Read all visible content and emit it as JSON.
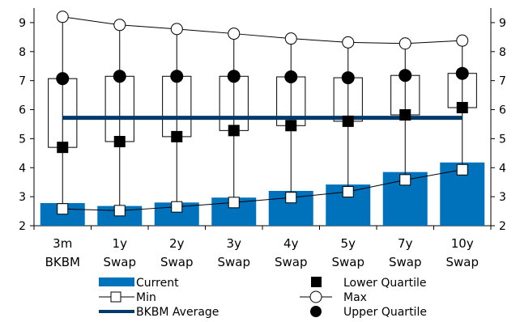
{
  "chart_data": {
    "type": "bar",
    "title": "",
    "xlabel": "",
    "ylabel": "",
    "ylim": [
      2,
      9.5
    ],
    "yticks": [
      2,
      3,
      4,
      5,
      6,
      7,
      8,
      9
    ],
    "secondary_axis": true,
    "grid": false,
    "legend_position": "bottom",
    "categories": [
      [
        "3m",
        "BKBM"
      ],
      [
        "1y",
        "Swap"
      ],
      [
        "2y",
        "Swap"
      ],
      [
        "3y",
        "Swap"
      ],
      [
        "4y",
        "Swap"
      ],
      [
        "5y",
        "Swap"
      ],
      [
        "7y",
        "Swap"
      ],
      [
        "10y",
        "Swap"
      ]
    ],
    "series": [
      {
        "name": "Current",
        "kind": "bar",
        "color": "#0072bc",
        "values": [
          2.78,
          2.68,
          2.8,
          2.97,
          3.2,
          3.42,
          3.85,
          4.18
        ]
      },
      {
        "name": "Min",
        "kind": "line-square-open",
        "values": [
          2.58,
          2.52,
          2.65,
          2.8,
          2.97,
          3.17,
          3.58,
          3.93
        ]
      },
      {
        "name": "BKBM Average",
        "kind": "hline",
        "color": "#003a6c",
        "values": [
          5.72,
          5.72,
          5.72,
          5.72,
          5.72,
          5.72,
          5.72,
          5.72
        ]
      },
      {
        "name": "Lower Quartile",
        "kind": "marker-square-filled",
        "values": [
          4.7,
          4.9,
          5.07,
          5.28,
          5.45,
          5.6,
          5.82,
          6.07
        ]
      },
      {
        "name": "Max",
        "kind": "line-circle-open",
        "values": [
          9.2,
          8.92,
          8.78,
          8.62,
          8.45,
          8.32,
          8.28,
          8.38
        ]
      },
      {
        "name": "Upper Quartile",
        "kind": "marker-circle-filled",
        "values": [
          7.07,
          7.15,
          7.15,
          7.15,
          7.13,
          7.1,
          7.18,
          7.25
        ]
      }
    ],
    "legend": [
      [
        "Current",
        "Lower Quartile"
      ],
      [
        "Min",
        "Max"
      ],
      [
        "BKBM Average",
        "Upper Quartile"
      ]
    ]
  }
}
